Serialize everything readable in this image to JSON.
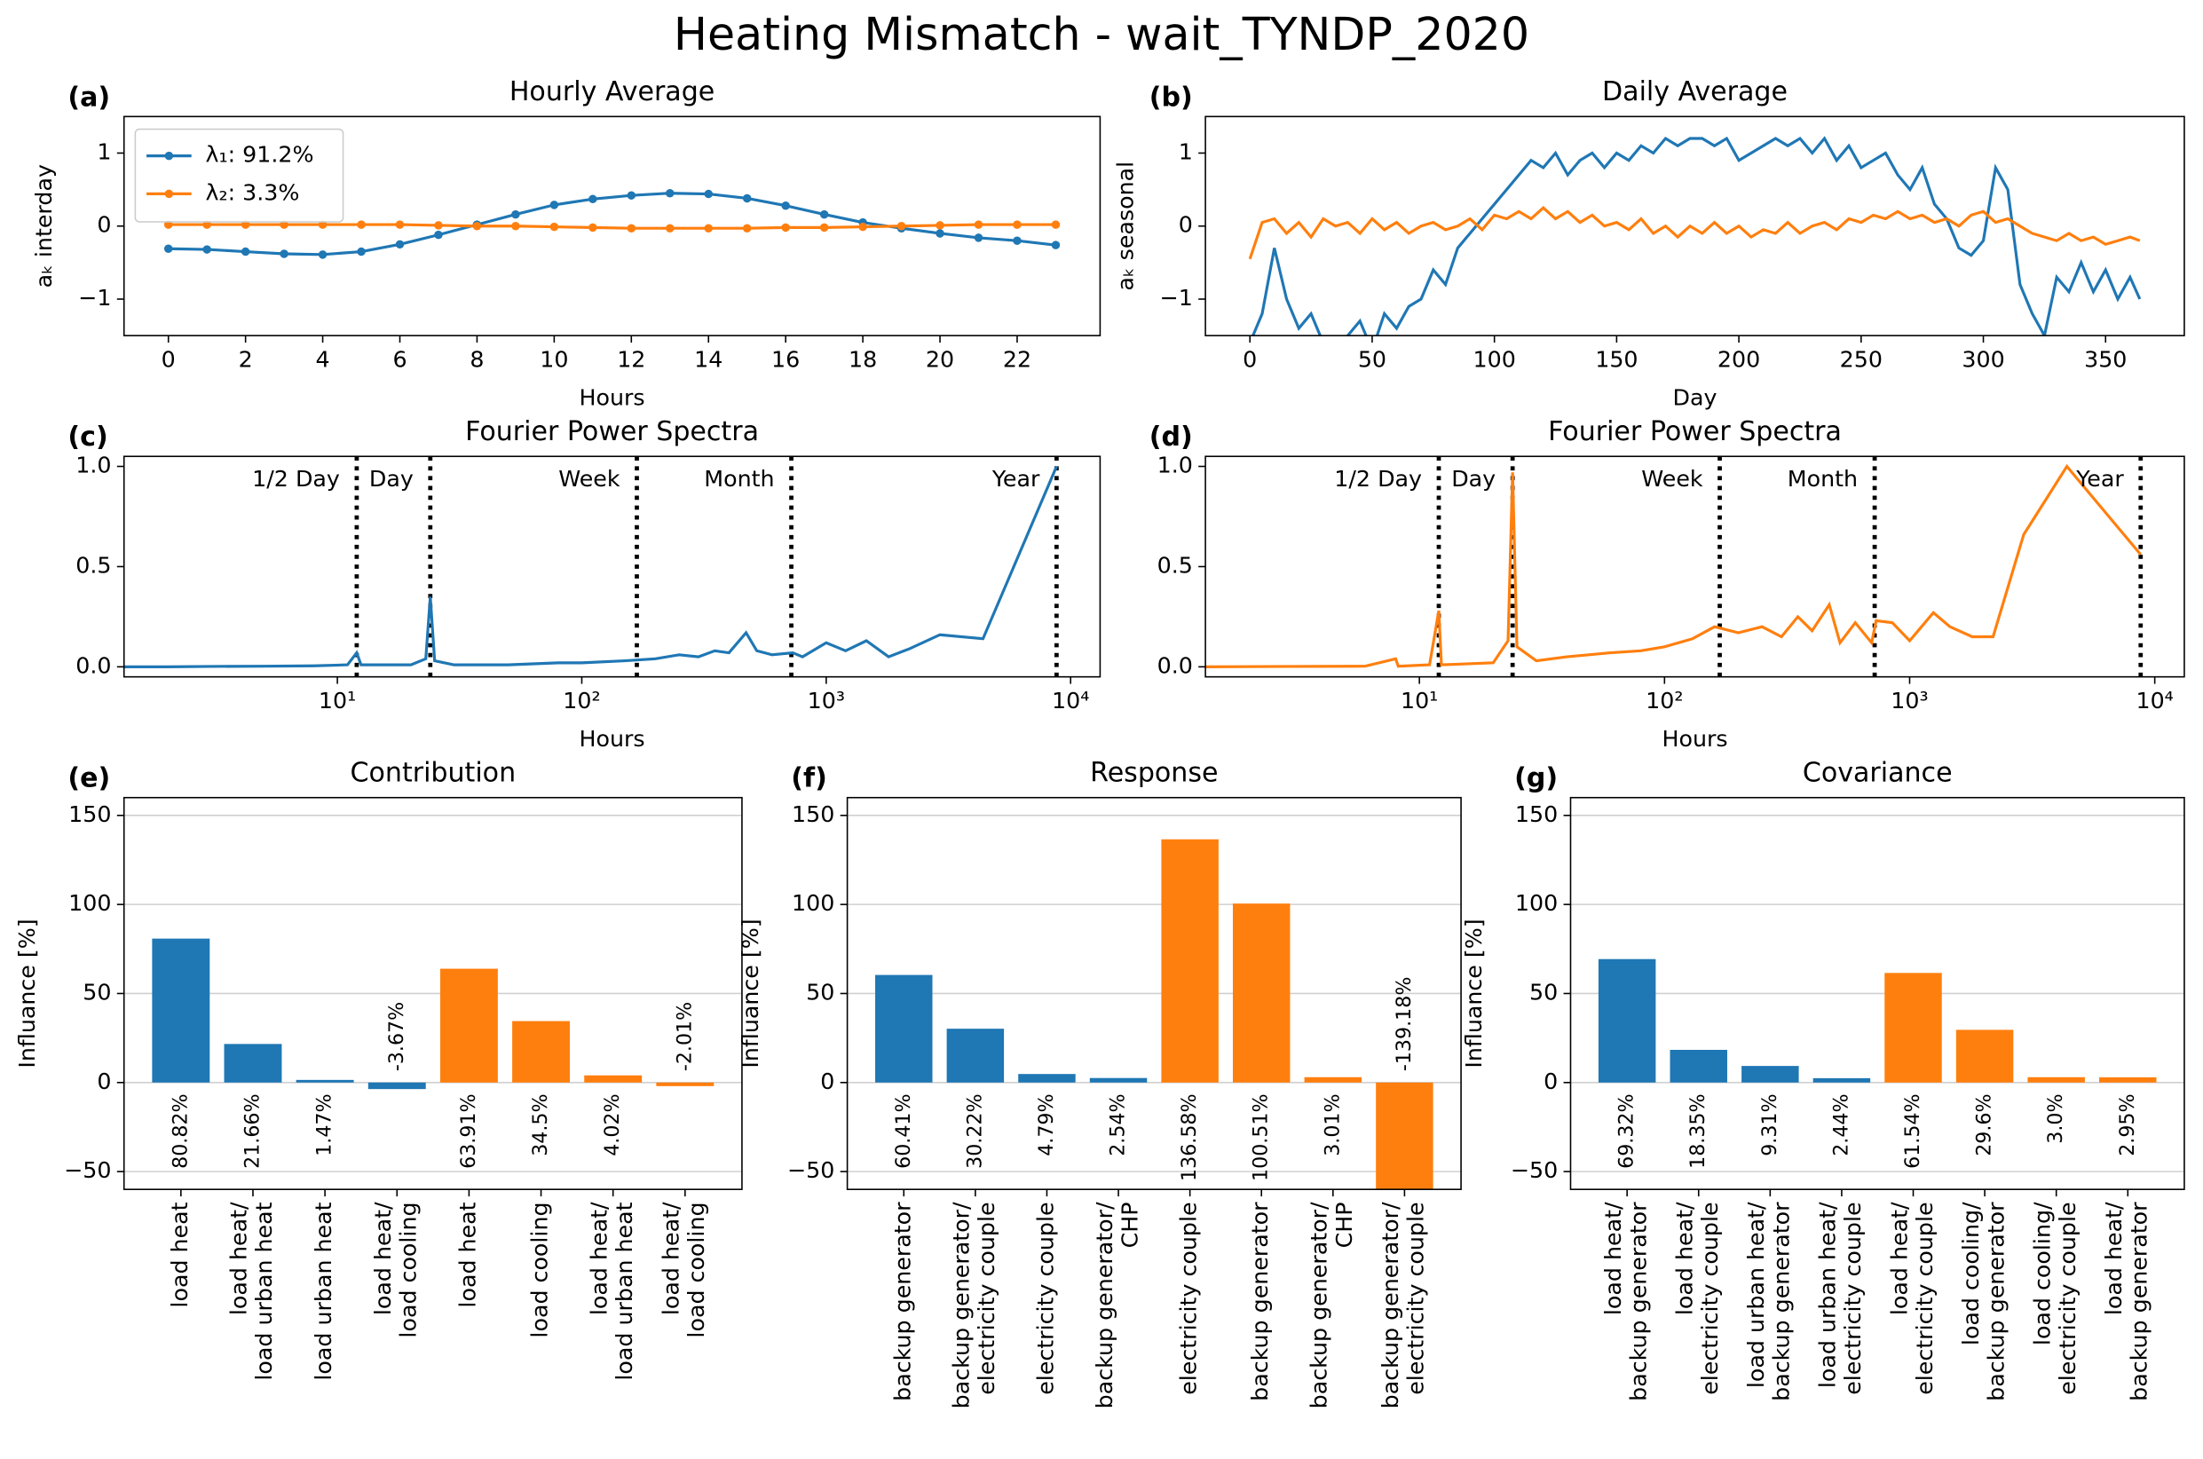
{
  "title": "Heating Mismatch - wait_TYNDP_2020",
  "chart_data": [
    {
      "type": "line",
      "panel_label": "(a)",
      "title": "Hourly Average",
      "xlabel": "Hours",
      "ylabel": "aₖ interday",
      "markers": true,
      "legend": "upper left",
      "x": [
        0,
        1,
        2,
        3,
        4,
        5,
        6,
        7,
        8,
        9,
        10,
        11,
        12,
        13,
        14,
        15,
        16,
        17,
        18,
        19,
        20,
        21,
        22,
        23
      ],
      "series": [
        {
          "name": "λ₁: 91.2%",
          "color": "#1f77b4",
          "values": [
            -0.31,
            -0.32,
            -0.35,
            -0.38,
            -0.39,
            -0.35,
            -0.25,
            -0.12,
            0.02,
            0.16,
            0.29,
            0.37,
            0.42,
            0.45,
            0.44,
            0.38,
            0.28,
            0.16,
            0.05,
            -0.03,
            -0.1,
            -0.16,
            -0.2,
            -0.26
          ]
        },
        {
          "name": "λ₂: 3.3%",
          "color": "#ff7f0e",
          "values": [
            0.02,
            0.02,
            0.02,
            0.02,
            0.02,
            0.02,
            0.02,
            0.01,
            0,
            0,
            -0.01,
            -0.02,
            -0.03,
            -0.03,
            -0.03,
            -0.03,
            -0.02,
            -0.02,
            -0.01,
            0,
            0.01,
            0.02,
            0.02,
            0.02
          ]
        }
      ],
      "xlim": [
        -1.15,
        24.15
      ],
      "xticks": [
        0,
        2,
        4,
        6,
        8,
        10,
        12,
        14,
        16,
        18,
        20,
        22
      ],
      "ylim": [
        -1.5,
        1.5
      ],
      "yticks": [
        {
          "value": -1,
          "label": "−1"
        },
        0,
        1
      ]
    },
    {
      "type": "line",
      "panel_label": "(b)",
      "title": "Daily Average",
      "xlabel": "Day",
      "ylabel": "aₖ seasonal",
      "markers": false,
      "x": [
        0,
        5,
        10,
        15,
        20,
        25,
        30,
        35,
        40,
        45,
        50,
        55,
        60,
        65,
        70,
        75,
        80,
        85,
        90,
        95,
        100,
        105,
        110,
        115,
        120,
        125,
        130,
        135,
        140,
        145,
        150,
        155,
        160,
        165,
        170,
        175,
        180,
        185,
        190,
        195,
        200,
        205,
        210,
        215,
        220,
        225,
        230,
        235,
        240,
        245,
        250,
        255,
        260,
        265,
        270,
        275,
        280,
        285,
        290,
        295,
        300,
        305,
        310,
        315,
        320,
        325,
        330,
        335,
        340,
        345,
        350,
        355,
        360,
        364
      ],
      "series": [
        {
          "color": "#1f77b4",
          "values": [
            -1.6,
            -1.2,
            -0.3,
            -1.0,
            -1.4,
            -1.2,
            -1.6,
            -1.9,
            -1.5,
            -1.3,
            -1.7,
            -1.2,
            -1.4,
            -1.1,
            -1.0,
            -0.6,
            -0.8,
            -0.3,
            -0.1,
            0.1,
            0.3,
            0.5,
            0.7,
            0.9,
            0.8,
            1.0,
            0.7,
            0.9,
            1.0,
            0.8,
            1.0,
            0.9,
            1.1,
            1.0,
            1.2,
            1.1,
            1.2,
            1.2,
            1.1,
            1.2,
            0.9,
            1.0,
            1.1,
            1.2,
            1.1,
            1.2,
            1.0,
            1.2,
            0.9,
            1.1,
            0.8,
            0.9,
            1.0,
            0.7,
            0.5,
            0.8,
            0.3,
            0.1,
            -0.3,
            -0.4,
            -0.2,
            0.8,
            0.5,
            -0.8,
            -1.2,
            -1.5,
            -0.7,
            -0.9,
            -0.5,
            -0.9,
            -0.6,
            -1.0,
            -0.7,
            -1.0
          ]
        },
        {
          "color": "#ff7f0e",
          "values": [
            -0.45,
            0.05,
            0.1,
            -0.1,
            0.05,
            -0.15,
            0.1,
            0,
            0.05,
            -0.1,
            0.1,
            -0.05,
            0.05,
            -0.1,
            0,
            0.05,
            -0.05,
            0,
            0.1,
            -0.05,
            0.15,
            0.1,
            0.2,
            0.1,
            0.25,
            0.1,
            0.2,
            0.05,
            0.15,
            0,
            0.05,
            -0.05,
            0.1,
            -0.1,
            0,
            -0.15,
            0,
            -0.1,
            0.05,
            -0.1,
            0,
            -0.15,
            -0.05,
            -0.1,
            0.05,
            -0.1,
            0,
            0.05,
            -0.05,
            0.1,
            0.05,
            0.15,
            0.1,
            0.2,
            0.1,
            0.15,
            0.05,
            0.1,
            0,
            0.15,
            0.2,
            0.05,
            0.1,
            0,
            -0.1,
            -0.15,
            -0.2,
            -0.1,
            -0.2,
            -0.15,
            -0.25,
            -0.2,
            -0.15,
            -0.2
          ]
        }
      ],
      "xlim": [
        -18.2,
        382.2
      ],
      "xticks": [
        0,
        50,
        100,
        150,
        200,
        250,
        300,
        350
      ],
      "ylim": [
        -1.5,
        1.5
      ],
      "yticks": [
        {
          "value": -1,
          "label": "−1"
        },
        0,
        1
      ]
    },
    {
      "type": "line",
      "panel_label": "(c)",
      "title": "Fourier Power Spectra",
      "xlabel": "Hours",
      "xscale": "log",
      "markers": false,
      "x": [
        1.34,
        2,
        3,
        5,
        8,
        11,
        12,
        12.5,
        20,
        23,
        24,
        25,
        30,
        50,
        80,
        100,
        150,
        200,
        250,
        300,
        350,
        400,
        470,
        520,
        600,
        730,
        800,
        1000,
        1200,
        1460,
        1800,
        2190,
        2920,
        4380,
        8760
      ],
      "series": [
        {
          "color": "#1f77b4",
          "values": [
            0,
            0,
            0.002,
            0.003,
            0.005,
            0.01,
            0.07,
            0.01,
            0.01,
            0.04,
            0.35,
            0.03,
            0.01,
            0.01,
            0.02,
            0.02,
            0.03,
            0.04,
            0.06,
            0.05,
            0.08,
            0.07,
            0.17,
            0.08,
            0.06,
            0.07,
            0.05,
            0.12,
            0.08,
            0.13,
            0.05,
            0.09,
            0.16,
            0.14,
            1.0
          ]
        }
      ],
      "vlines": [
        {
          "x": 12,
          "label": "1/2 Day"
        },
        {
          "x": 24,
          "label": "Day"
        },
        {
          "x": 168,
          "label": "Week"
        },
        {
          "x": 720,
          "label": "Month"
        },
        {
          "x": 8760,
          "label": "Year"
        }
      ],
      "xlim": [
        1.34,
        13200
      ],
      "xticks": [
        {
          "value": 10,
          "label": "10¹"
        },
        {
          "value": 100,
          "label": "10²"
        },
        {
          "value": 1000,
          "label": "10³"
        },
        {
          "value": 10000,
          "label": "10⁴"
        }
      ],
      "ylim": [
        -0.05,
        1.05
      ],
      "yticks": [
        {
          "value": 0,
          "label": "0.0"
        },
        0.5,
        {
          "value": 1,
          "label": "1.0"
        }
      ]
    },
    {
      "type": "line",
      "panel_label": "(d)",
      "title": "Fourier Power Spectra",
      "xlabel": "Hours",
      "xscale": "log",
      "markers": false,
      "x": [
        1.34,
        3,
        6,
        8,
        8.2,
        11,
        12,
        12.3,
        20,
        23,
        24,
        25,
        30,
        40,
        60,
        80,
        100,
        130,
        160,
        200,
        250,
        300,
        350,
        400,
        470,
        520,
        600,
        700,
        730,
        850,
        1000,
        1250,
        1460,
        1800,
        2190,
        2920,
        4380,
        8760
      ],
      "series": [
        {
          "color": "#ff7f0e",
          "values": [
            0,
            0.002,
            0.003,
            0.04,
            0.003,
            0.01,
            0.28,
            0.01,
            0.02,
            0.13,
            0.97,
            0.1,
            0.03,
            0.05,
            0.07,
            0.08,
            0.1,
            0.14,
            0.2,
            0.17,
            0.2,
            0.15,
            0.25,
            0.18,
            0.31,
            0.12,
            0.22,
            0.12,
            0.23,
            0.22,
            0.13,
            0.27,
            0.2,
            0.15,
            0.15,
            0.66,
            1.0,
            0.56
          ]
        }
      ],
      "vlines": [
        {
          "x": 12,
          "label": "1/2 Day"
        },
        {
          "x": 24,
          "label": "Day"
        },
        {
          "x": 168,
          "label": "Week"
        },
        {
          "x": 720,
          "label": "Month"
        },
        {
          "x": 8760,
          "label": "Year"
        }
      ],
      "xlim": [
        1.34,
        13200
      ],
      "xticks": [
        {
          "value": 10,
          "label": "10¹"
        },
        {
          "value": 100,
          "label": "10²"
        },
        {
          "value": 1000,
          "label": "10³"
        },
        {
          "value": 10000,
          "label": "10⁴"
        }
      ],
      "ylim": [
        -0.05,
        1.05
      ],
      "yticks": [
        {
          "value": 0,
          "label": "0.0"
        },
        0.5,
        {
          "value": 1,
          "label": "1.0"
        }
      ]
    },
    {
      "type": "bar",
      "panel_label": "(e)",
      "title": "Contribution",
      "ylabel": "Influance [%]",
      "grid": true,
      "categories": [
        "load heat",
        "load heat/\nload urban heat",
        "load urban heat",
        "load heat/\nload cooling",
        "load heat",
        "load cooling",
        "load heat/\nload urban heat",
        "load heat/\nload cooling"
      ],
      "values": [
        80.82,
        21.66,
        1.47,
        -3.67,
        63.91,
        34.5,
        4.02,
        -2.01
      ],
      "value_labels": [
        "80.82%",
        "21.66%",
        "1.47%",
        "-3.67%",
        "63.91%",
        "34.5%",
        "4.02%",
        "-2.01%"
      ],
      "colors": [
        "#1f77b4",
        "#1f77b4",
        "#1f77b4",
        "#1f77b4",
        "#ff7f0e",
        "#ff7f0e",
        "#ff7f0e",
        "#ff7f0e"
      ],
      "ylim": [
        -60,
        160
      ],
      "yticks": [
        {
          "value": -50,
          "label": "−50"
        },
        0,
        50,
        100,
        150
      ]
    },
    {
      "type": "bar",
      "panel_label": "(f)",
      "title": "Response",
      "ylabel": "Influance [%]",
      "grid": true,
      "categories": [
        "backup generator",
        "backup generator/\nelectricity couple",
        "electricity couple",
        "backup generator/\nCHP",
        "electricity couple",
        "backup generator",
        "backup generator/\nCHP",
        "backup generator/\nelectricity couple"
      ],
      "values": [
        60.41,
        30.22,
        4.79,
        2.54,
        136.58,
        100.51,
        3.01,
        -139.18
      ],
      "value_labels": [
        "60.41%",
        "30.22%",
        "4.79%",
        "2.54%",
        "136.58%",
        "100.51%",
        "3.01%",
        "-139.18%"
      ],
      "colors": [
        "#1f77b4",
        "#1f77b4",
        "#1f77b4",
        "#1f77b4",
        "#ff7f0e",
        "#ff7f0e",
        "#ff7f0e",
        "#ff7f0e"
      ],
      "ylim": [
        -60,
        160
      ],
      "yticks": [
        {
          "value": -50,
          "label": "−50"
        },
        0,
        50,
        100,
        150
      ]
    },
    {
      "type": "bar",
      "panel_label": "(g)",
      "title": "Covariance",
      "ylabel": "Influance [%]",
      "grid": true,
      "categories": [
        "load heat/\nbackup generator",
        "load heat/\nelectricity couple",
        "load urban heat/\nbackup generator",
        "load urban heat/\nelectricity couple",
        "load heat/\nelectricity couple",
        "load cooling/\nbackup generator",
        "load cooling/\nelectricity couple",
        "load heat/\nbackup generator"
      ],
      "values": [
        69.32,
        18.35,
        9.31,
        2.44,
        61.54,
        29.6,
        3,
        2.95
      ],
      "value_labels": [
        "69.32%",
        "18.35%",
        "9.31%",
        "2.44%",
        "61.54%",
        "29.6%",
        "3.0%",
        "2.95%"
      ],
      "colors": [
        "#1f77b4",
        "#1f77b4",
        "#1f77b4",
        "#1f77b4",
        "#ff7f0e",
        "#ff7f0e",
        "#ff7f0e",
        "#ff7f0e"
      ],
      "ylim": [
        -60,
        160
      ],
      "yticks": [
        {
          "value": -50,
          "label": "−50"
        },
        0,
        50,
        100,
        150
      ]
    }
  ]
}
